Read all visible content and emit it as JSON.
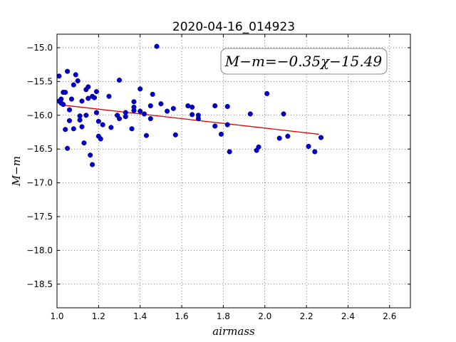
{
  "chart_data": {
    "type": "scatter",
    "title": "2020-04-16_014923",
    "xlabel": "airmass",
    "ylabel": "M−m",
    "xlim": [
      1.0,
      2.7
    ],
    "ylim": [
      -18.85,
      -14.8
    ],
    "xticks": [
      "1.0",
      "1.2",
      "1.4",
      "1.6",
      "1.8",
      "2.0",
      "2.2",
      "2.4",
      "2.6"
    ],
    "yticks": [
      "−15.0",
      "−15.5",
      "−16.0",
      "−16.5",
      "−17.0",
      "−17.5",
      "−18.0",
      "−18.5"
    ],
    "grid": true,
    "annotation": "M−m=−0.35χ−15.49",
    "colors": {
      "points": "#0000cc",
      "fit": "#e00000"
    },
    "fit": {
      "slope": -0.35,
      "intercept": -15.49,
      "x_range": [
        1.04,
        2.26
      ]
    },
    "points": [
      [
        1.01,
        -15.42
      ],
      [
        1.01,
        -15.79
      ],
      [
        1.02,
        -15.76
      ],
      [
        1.02,
        -15.82
      ],
      [
        1.03,
        -15.66
      ],
      [
        1.04,
        -15.66
      ],
      [
        1.05,
        -15.35
      ],
      [
        1.03,
        -15.84
      ],
      [
        1.04,
        -16.21
      ],
      [
        1.05,
        -16.49
      ],
      [
        1.06,
        -16.08
      ],
      [
        1.06,
        -15.92
      ],
      [
        1.07,
        -15.76
      ],
      [
        1.08,
        -15.55
      ],
      [
        1.08,
        -16.2
      ],
      [
        1.09,
        -15.4
      ],
      [
        1.1,
        -15.49
      ],
      [
        1.11,
        -16.01
      ],
      [
        1.11,
        -16.07
      ],
      [
        1.12,
        -16.17
      ],
      [
        1.12,
        -15.79
      ],
      [
        1.13,
        -16.41
      ],
      [
        1.14,
        -15.62
      ],
      [
        1.14,
        -16.0
      ],
      [
        1.15,
        -15.58
      ],
      [
        1.15,
        -15.75
      ],
      [
        1.16,
        -16.59
      ],
      [
        1.17,
        -16.73
      ],
      [
        1.17,
        -15.72
      ],
      [
        1.18,
        -15.74
      ],
      [
        1.19,
        -15.65
      ],
      [
        1.19,
        -15.96
      ],
      [
        1.2,
        -16.31
      ],
      [
        1.2,
        -16.09
      ],
      [
        1.21,
        -16.35
      ],
      [
        1.22,
        -16.14
      ],
      [
        1.25,
        -15.72
      ],
      [
        1.26,
        -16.18
      ],
      [
        1.29,
        -16.0
      ],
      [
        1.3,
        -16.05
      ],
      [
        1.3,
        -15.48
      ],
      [
        1.33,
        -16.02
      ],
      [
        1.33,
        -15.96
      ],
      [
        1.36,
        -16.2
      ],
      [
        1.37,
        -15.8
      ],
      [
        1.37,
        -15.93
      ],
      [
        1.37,
        -15.88
      ],
      [
        1.4,
        -15.94
      ],
      [
        1.4,
        -15.61
      ],
      [
        1.42,
        -15.98
      ],
      [
        1.43,
        -16.3
      ],
      [
        1.45,
        -15.86
      ],
      [
        1.45,
        -16.05
      ],
      [
        1.46,
        -15.69
      ],
      [
        1.48,
        -14.98
      ],
      [
        1.5,
        -15.83
      ],
      [
        1.53,
        -15.94
      ],
      [
        1.56,
        -15.9
      ],
      [
        1.57,
        -16.29
      ],
      [
        1.63,
        -15.86
      ],
      [
        1.65,
        -15.99
      ],
      [
        1.65,
        -15.88
      ],
      [
        1.68,
        -16.05
      ],
      [
        1.68,
        -16.0
      ],
      [
        1.76,
        -16.16
      ],
      [
        1.76,
        -15.86
      ],
      [
        1.79,
        -16.28
      ],
      [
        1.82,
        -16.14
      ],
      [
        1.82,
        -15.87
      ],
      [
        1.83,
        -16.54
      ],
      [
        1.93,
        -15.98
      ],
      [
        1.96,
        -16.52
      ],
      [
        1.97,
        -16.47
      ],
      [
        2.01,
        -15.68
      ],
      [
        2.07,
        -16.34
      ],
      [
        2.09,
        -15.98
      ],
      [
        2.11,
        -16.31
      ],
      [
        2.21,
        -16.46
      ],
      [
        2.24,
        -16.54
      ],
      [
        2.27,
        -16.33
      ]
    ]
  }
}
